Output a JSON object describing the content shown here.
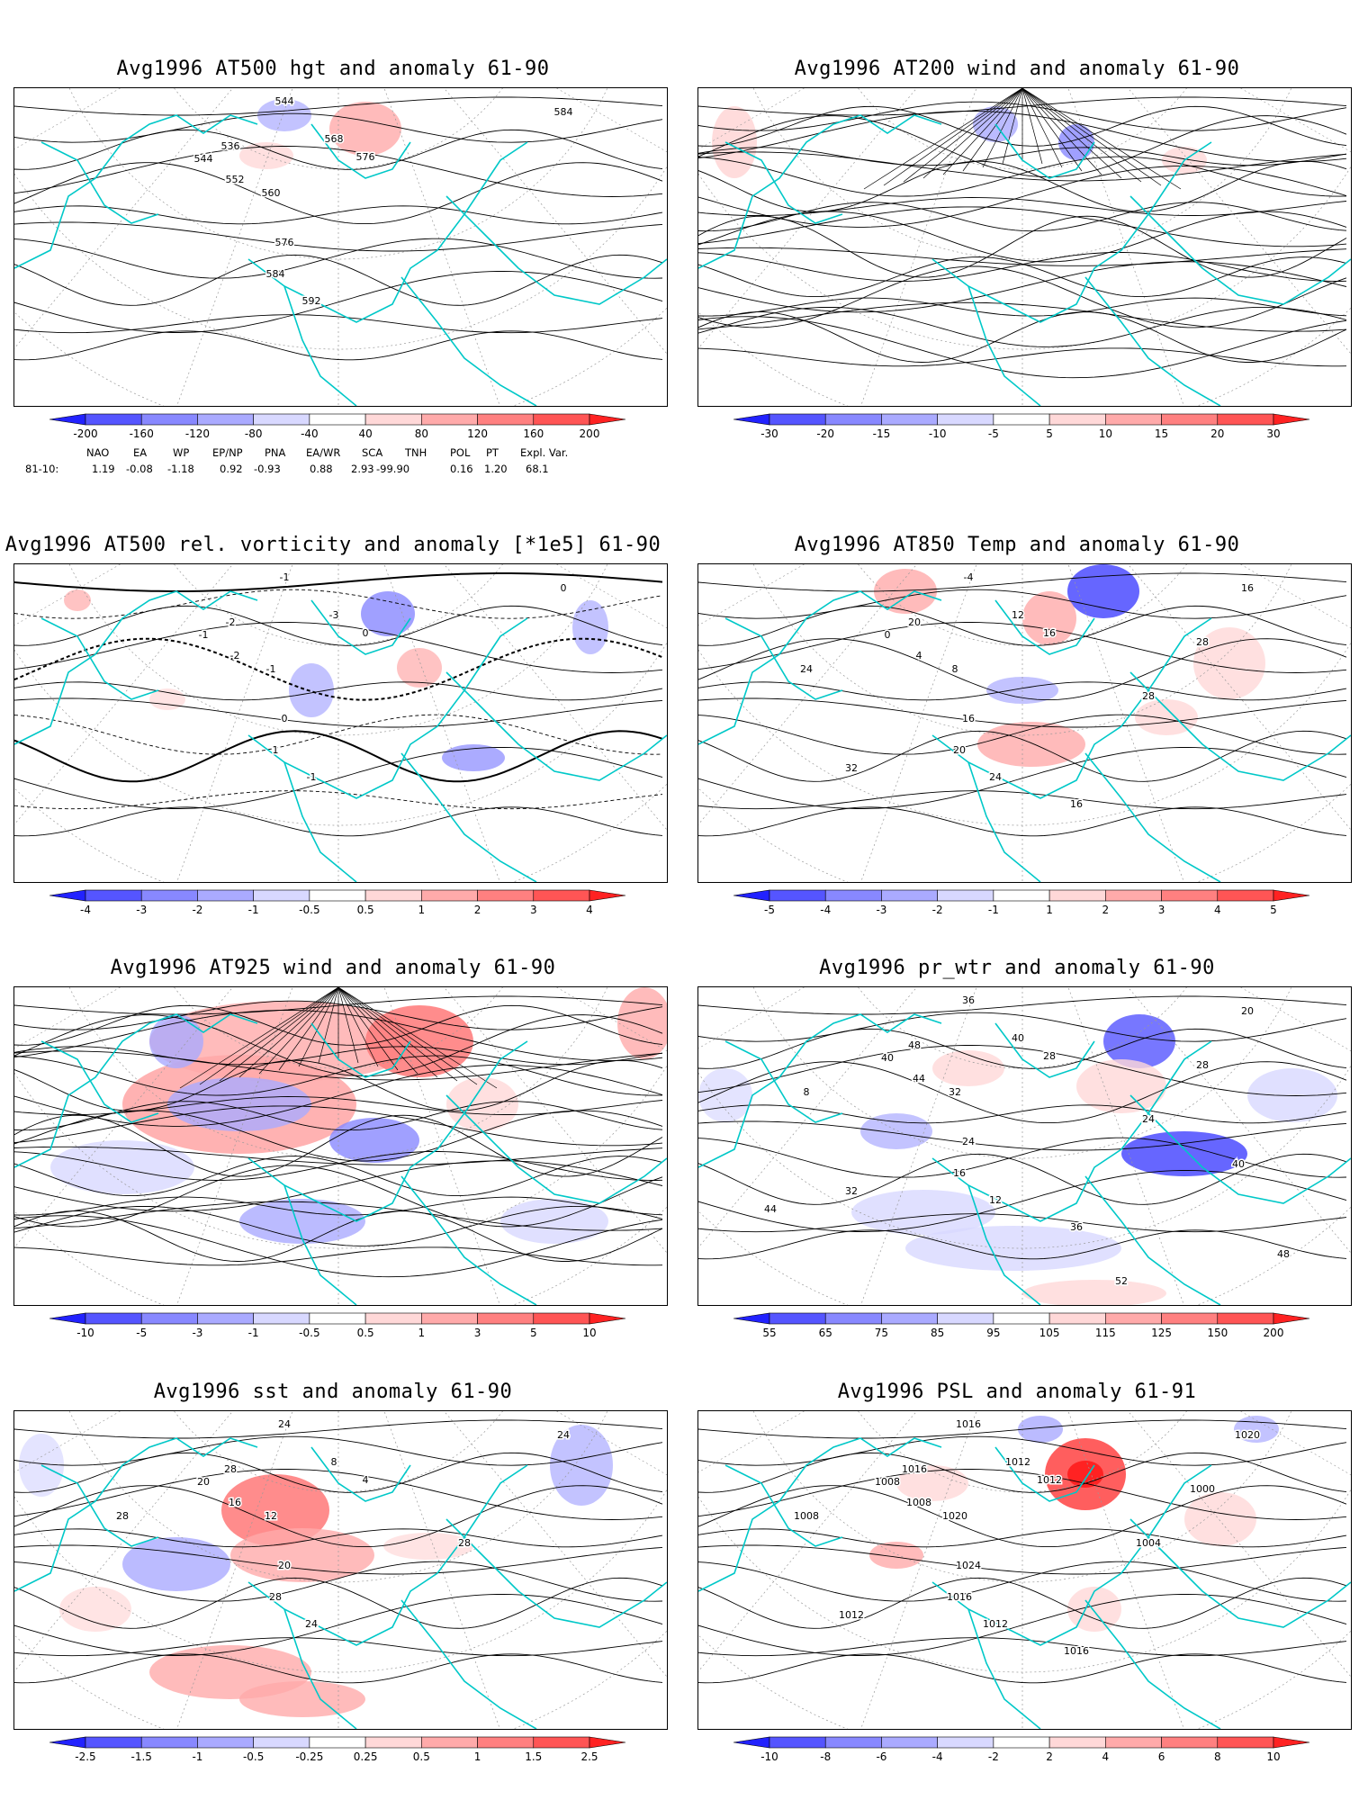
{
  "panels": [
    {
      "id": "p1",
      "title": "Avg1996 AT500 hgt and anomaly 61-90",
      "labels": [
        "536",
        "544",
        "544",
        "552",
        "560",
        "568",
        "576",
        "576",
        "584",
        "584",
        "592"
      ],
      "colorbar": [
        "-200",
        "-160",
        "-120",
        "-80",
        "-40",
        "40",
        "80",
        "120",
        "160",
        "200"
      ]
    },
    {
      "id": "p2",
      "title": "Avg1996 AT200 wind and anomaly 61-90",
      "labels": [],
      "colorbar": [
        "-30",
        "-20",
        "-15",
        "-10",
        "-5",
        "5",
        "10",
        "15",
        "20",
        "30"
      ]
    },
    {
      "id": "p3",
      "title": "Avg1996 AT500 rel. vorticity and anomaly [*1e5] 61-90",
      "labels": [
        "-2",
        "-1",
        "-1",
        "-2",
        "-1",
        "-3",
        "0",
        "0",
        "0",
        "1",
        "-1"
      ],
      "colorbar": [
        "-4",
        "-3",
        "-2",
        "-1",
        "-0.5",
        "0.5",
        "1",
        "2",
        "3",
        "4"
      ]
    },
    {
      "id": "p4",
      "title": "Avg1996 AT850 Temp and anomaly 61-90",
      "labels": [
        "20",
        "-4",
        "0",
        "4",
        "8",
        "12",
        "16",
        "16",
        "16",
        "20",
        "24",
        "24",
        "28",
        "28",
        "32",
        "16"
      ],
      "colorbar": [
        "-5",
        "-4",
        "-3",
        "-2",
        "-1",
        "1",
        "2",
        "3",
        "4",
        "5"
      ]
    },
    {
      "id": "p5",
      "title": "Avg1996 AT925 wind and anomaly 61-90",
      "labels": [],
      "colorbar": [
        "-10",
        "-5",
        "-3",
        "-1",
        "-0.5",
        "0.5",
        "1",
        "3",
        "5",
        "10"
      ]
    },
    {
      "id": "p6",
      "title": "Avg1996 pr_wtr and anomaly 61-90",
      "labels": [
        "48",
        "36",
        "40",
        "44",
        "32",
        "40",
        "28",
        "24",
        "20",
        "16",
        "12",
        "8",
        "24",
        "28",
        "32",
        "36",
        "40",
        "44",
        "48",
        "52"
      ],
      "colorbar": [
        "55",
        "65",
        "75",
        "85",
        "95",
        "105",
        "115",
        "125",
        "150",
        "200"
      ]
    },
    {
      "id": "p7",
      "title": "Avg1996 sst and anomaly 61-90",
      "labels": [
        "28",
        "24",
        "20",
        "16",
        "12",
        "8",
        "4",
        "20",
        "24",
        "28",
        "24",
        "28",
        "28"
      ],
      "colorbar": [
        "-2.5",
        "-1.5",
        "-1",
        "-0.5",
        "-0.25",
        "0.25",
        "0.5",
        "1",
        "1.5",
        "2.5"
      ]
    },
    {
      "id": "p8",
      "title": "Avg1996 PSL and anomaly 61-91",
      "labels": [
        "1016",
        "1016",
        "1008",
        "1008",
        "1020",
        "1012",
        "1012",
        "1024",
        "1020",
        "1016",
        "1012",
        "1008",
        "1004",
        "1000",
        "1012",
        "1016"
      ],
      "colorbar": [
        "-10",
        "-8",
        "-6",
        "-4",
        "-2",
        "2",
        "4",
        "6",
        "8",
        "10"
      ]
    }
  ],
  "indices": {
    "headers": [
      "NAO",
      "EA",
      "WP",
      "EP/NP",
      "PNA",
      "EA/WR",
      "SCA",
      "TNH",
      "POL",
      "PT",
      "Expl. Var."
    ],
    "row_label": "81-10:",
    "values": [
      "1.19",
      "-0.08",
      "-1.18",
      "0.92",
      "-0.93",
      "0.88",
      "2.93",
      "-99.90",
      "0.16",
      "1.20",
      "68.1"
    ]
  },
  "colors": {
    "border": "#00c8c8",
    "blue": [
      "#2222ff",
      "#5555ff",
      "#8888ff",
      "#aaaaff",
      "#d8d8ff"
    ],
    "red": [
      "#ffd8d8",
      "#ffaaaa",
      "#ff8080",
      "#ff5555",
      "#ff2222"
    ]
  }
}
